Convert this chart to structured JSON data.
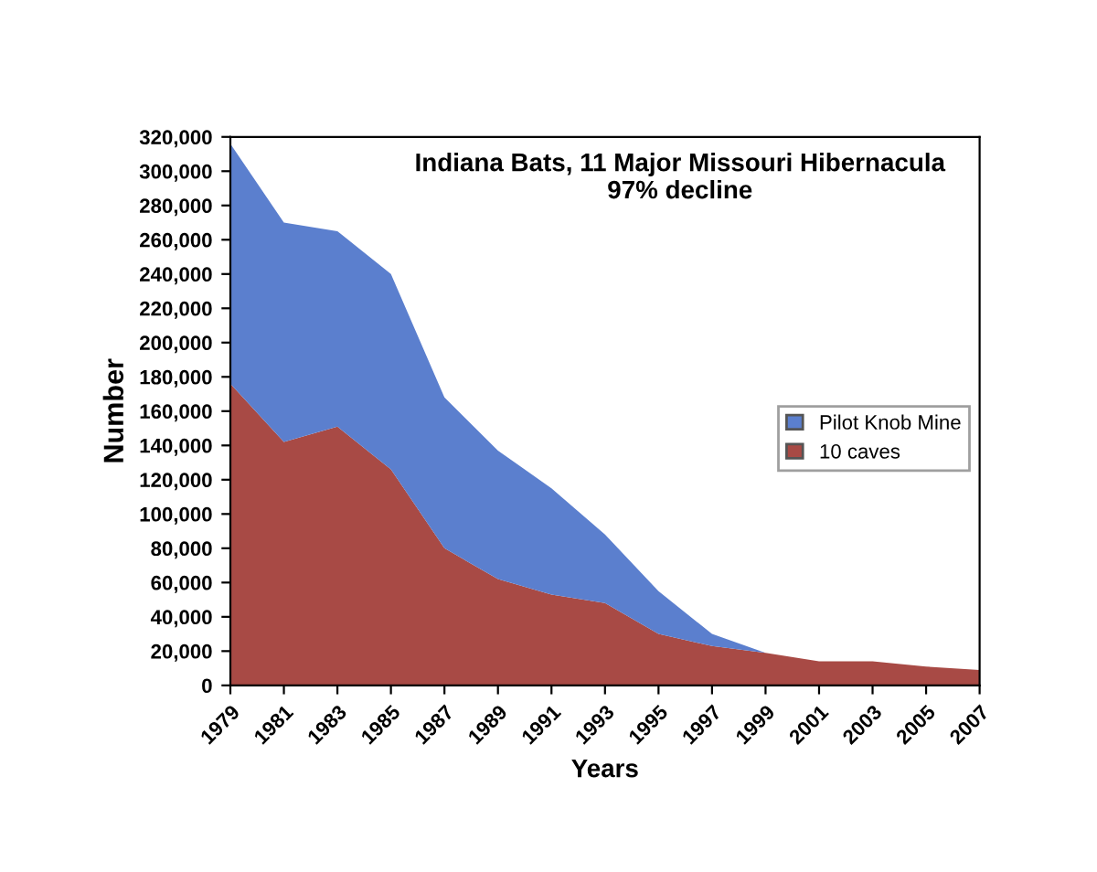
{
  "chart_data": {
    "type": "area",
    "stacked": true,
    "title": "Indiana Bats, 11 Major Missouri Hibernacula\n97% decline",
    "xlabel": "Years",
    "ylabel": "Number",
    "categories": [
      "1979",
      "1981",
      "1983",
      "1985",
      "1987",
      "1989",
      "1991",
      "1993",
      "1995",
      "1997",
      "1999",
      "2001",
      "2003",
      "2005",
      "2007"
    ],
    "series": [
      {
        "name": "10 caves",
        "color": "#a84a45",
        "values": [
          176000,
          142000,
          151000,
          126000,
          80000,
          62000,
          53000,
          48000,
          30000,
          23000,
          19000,
          14000,
          14000,
          11000,
          9000
        ]
      },
      {
        "name": "Pilot Knob Mine",
        "color": "#5b7fce",
        "values": [
          140000,
          128000,
          114000,
          114000,
          88000,
          75000,
          62000,
          40000,
          25000,
          7000,
          0,
          0,
          0,
          0,
          0
        ]
      }
    ],
    "ylim": [
      0,
      320000
    ],
    "yticks": [
      {
        "value": 0,
        "label": "0"
      },
      {
        "value": 20000,
        "label": "20,000"
      },
      {
        "value": 40000,
        "label": "40,000"
      },
      {
        "value": 60000,
        "label": "60,000"
      },
      {
        "value": 80000,
        "label": "80,000"
      },
      {
        "value": 100000,
        "label": "100,000"
      },
      {
        "value": 120000,
        "label": "120,000"
      },
      {
        "value": 140000,
        "label": "140,000"
      },
      {
        "value": 160000,
        "label": "160,000"
      },
      {
        "value": 180000,
        "label": "180,000"
      },
      {
        "value": 200000,
        "label": "200,000"
      },
      {
        "value": 220000,
        "label": "220,000"
      },
      {
        "value": 240000,
        "label": "240,000"
      },
      {
        "value": 260000,
        "label": "260,000"
      },
      {
        "value": 280000,
        "label": "280,000"
      },
      {
        "value": 300000,
        "label": "300,000"
      },
      {
        "value": 320000,
        "label": "320,000"
      }
    ],
    "grid": false,
    "legend": "right"
  }
}
